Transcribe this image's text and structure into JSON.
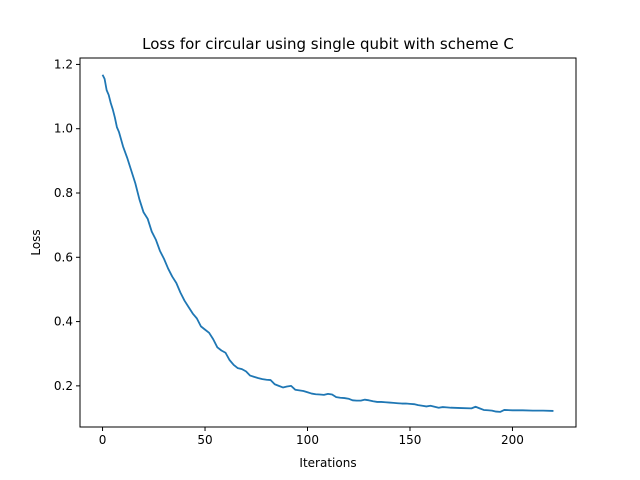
{
  "chart_data": {
    "type": "line",
    "title": "Loss for circular using single qubit with scheme C",
    "xlabel": "Iterations",
    "ylabel": "Loss",
    "xlim": [
      -11,
      231
    ],
    "ylim": [
      0.072,
      1.22
    ],
    "xticks": [
      0,
      50,
      100,
      150,
      200
    ],
    "yticks": [
      0.2,
      0.4,
      0.6,
      0.8,
      1.0,
      1.2
    ],
    "ytick_labels": [
      "0.2",
      "0.4",
      "0.6",
      "0.8",
      "1.0",
      "1.2"
    ],
    "grid": false,
    "legend": "none",
    "series": [
      {
        "color": "#1f77b4",
        "x": [
          0,
          1,
          2,
          3,
          4,
          5,
          6,
          7,
          8,
          10,
          12,
          14,
          16,
          18,
          20,
          22,
          24,
          26,
          28,
          30,
          32,
          34,
          36,
          38,
          40,
          42,
          44,
          46,
          48,
          50,
          52,
          54,
          56,
          58,
          60,
          62,
          64,
          66,
          68,
          70,
          72,
          74,
          76,
          78,
          80,
          82,
          84,
          86,
          88,
          90,
          92,
          94,
          96,
          98,
          100,
          102,
          104,
          106,
          108,
          110,
          112,
          114,
          116,
          118,
          120,
          122,
          124,
          126,
          128,
          130,
          132,
          134,
          136,
          138,
          140,
          142,
          144,
          146,
          148,
          150,
          152,
          154,
          156,
          158,
          160,
          162,
          164,
          166,
          168,
          170,
          175,
          180,
          182,
          184,
          186,
          188,
          190,
          192,
          194,
          196,
          200,
          205,
          210,
          215,
          220
        ],
        "y": [
          1.168,
          1.155,
          1.12,
          1.105,
          1.08,
          1.06,
          1.035,
          1.005,
          0.99,
          0.945,
          0.91,
          0.87,
          0.83,
          0.78,
          0.74,
          0.72,
          0.68,
          0.655,
          0.62,
          0.595,
          0.565,
          0.54,
          0.52,
          0.49,
          0.465,
          0.445,
          0.425,
          0.41,
          0.385,
          0.375,
          0.365,
          0.345,
          0.32,
          0.31,
          0.303,
          0.28,
          0.265,
          0.255,
          0.252,
          0.245,
          0.232,
          0.228,
          0.224,
          0.221,
          0.219,
          0.218,
          0.205,
          0.2,
          0.195,
          0.198,
          0.2,
          0.188,
          0.186,
          0.184,
          0.18,
          0.176,
          0.174,
          0.173,
          0.172,
          0.175,
          0.173,
          0.165,
          0.163,
          0.162,
          0.16,
          0.155,
          0.154,
          0.154,
          0.157,
          0.155,
          0.152,
          0.15,
          0.15,
          0.149,
          0.148,
          0.147,
          0.146,
          0.145,
          0.145,
          0.144,
          0.143,
          0.14,
          0.138,
          0.136,
          0.138,
          0.135,
          0.132,
          0.134,
          0.133,
          0.132,
          0.131,
          0.13,
          0.135,
          0.13,
          0.125,
          0.124,
          0.123,
          0.12,
          0.119,
          0.125,
          0.124,
          0.124,
          0.123,
          0.123,
          0.122
        ]
      }
    ]
  }
}
